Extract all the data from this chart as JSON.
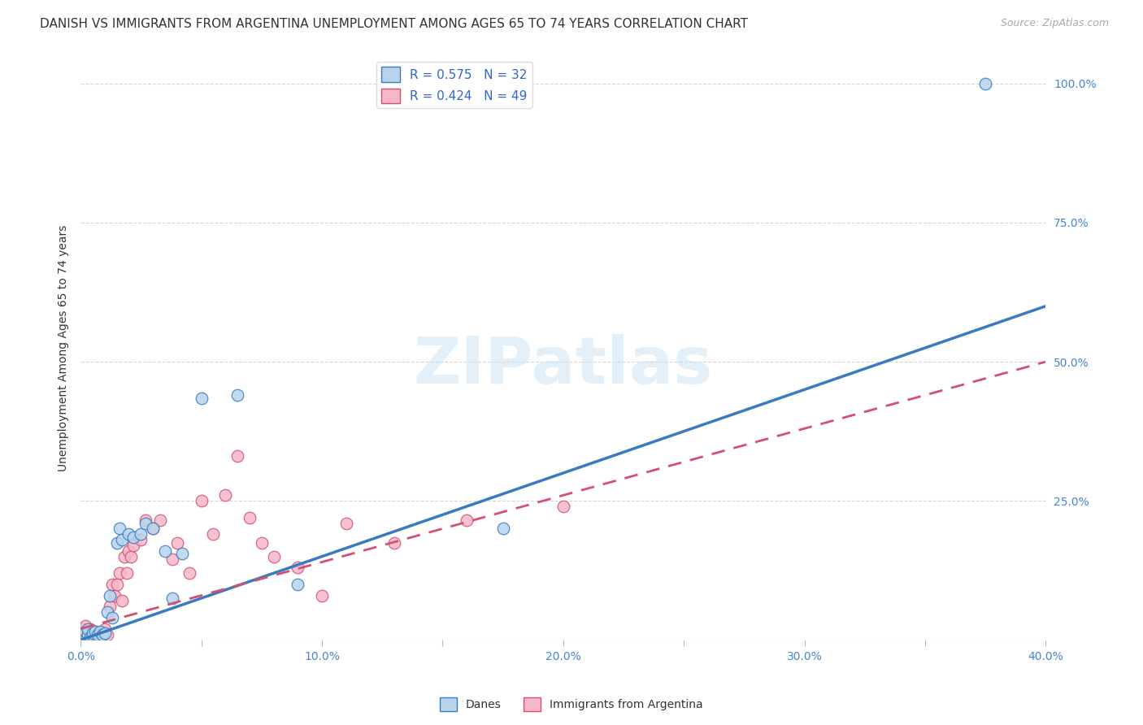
{
  "title": "DANISH VS IMMIGRANTS FROM ARGENTINA UNEMPLOYMENT AMONG AGES 65 TO 74 YEARS CORRELATION CHART",
  "source": "Source: ZipAtlas.com",
  "ylabel": "Unemployment Among Ages 65 to 74 years",
  "xlim": [
    0.0,
    0.4
  ],
  "ylim": [
    0.0,
    1.05
  ],
  "xticks": [
    0.0,
    0.05,
    0.1,
    0.15,
    0.2,
    0.25,
    0.3,
    0.35,
    0.4
  ],
  "yticks": [
    0.0,
    0.25,
    0.5,
    0.75,
    1.0
  ],
  "ytick_labels": [
    "",
    "25.0%",
    "50.0%",
    "75.0%",
    "100.0%"
  ],
  "xtick_labels": [
    "0.0%",
    "",
    "10.0%",
    "",
    "20.0%",
    "",
    "30.0%",
    "",
    "40.0%"
  ],
  "danes_R": 0.575,
  "danes_N": 32,
  "argentina_R": 0.424,
  "argentina_N": 49,
  "danes_color": "#b8d4ed",
  "danes_line_color": "#3a7bbf",
  "argentina_color": "#f5b8c8",
  "argentina_line_color": "#d45070",
  "danes_trend_x": [
    0.0,
    0.4
  ],
  "danes_trend_y": [
    0.0,
    0.6
  ],
  "argentina_trend_x": [
    0.0,
    0.4
  ],
  "argentina_trend_y": [
    0.02,
    0.5
  ],
  "danes_x": [
    0.001,
    0.002,
    0.002,
    0.003,
    0.003,
    0.004,
    0.005,
    0.005,
    0.006,
    0.007,
    0.008,
    0.009,
    0.01,
    0.011,
    0.012,
    0.013,
    0.015,
    0.016,
    0.017,
    0.02,
    0.022,
    0.025,
    0.027,
    0.03,
    0.035,
    0.038,
    0.042,
    0.05,
    0.065,
    0.09,
    0.175,
    0.375
  ],
  "danes_y": [
    0.005,
    0.01,
    0.015,
    0.01,
    0.02,
    0.005,
    0.008,
    0.012,
    0.015,
    0.01,
    0.015,
    0.01,
    0.012,
    0.05,
    0.08,
    0.04,
    0.175,
    0.2,
    0.18,
    0.19,
    0.185,
    0.19,
    0.21,
    0.2,
    0.16,
    0.075,
    0.155,
    0.435,
    0.44,
    0.1,
    0.2,
    1.0
  ],
  "argentina_x": [
    0.001,
    0.001,
    0.002,
    0.002,
    0.003,
    0.003,
    0.004,
    0.004,
    0.005,
    0.005,
    0.006,
    0.006,
    0.007,
    0.007,
    0.008,
    0.009,
    0.01,
    0.011,
    0.012,
    0.013,
    0.014,
    0.015,
    0.016,
    0.017,
    0.018,
    0.019,
    0.02,
    0.021,
    0.022,
    0.025,
    0.027,
    0.03,
    0.033,
    0.038,
    0.04,
    0.045,
    0.05,
    0.055,
    0.06,
    0.065,
    0.07,
    0.075,
    0.08,
    0.09,
    0.1,
    0.11,
    0.13,
    0.16,
    0.2
  ],
  "argentina_y": [
    0.02,
    0.01,
    0.015,
    0.025,
    0.01,
    0.015,
    0.02,
    0.01,
    0.005,
    0.012,
    0.01,
    0.015,
    0.012,
    0.008,
    0.012,
    0.01,
    0.02,
    0.01,
    0.06,
    0.1,
    0.08,
    0.1,
    0.12,
    0.07,
    0.15,
    0.12,
    0.16,
    0.15,
    0.17,
    0.18,
    0.215,
    0.2,
    0.215,
    0.145,
    0.175,
    0.12,
    0.25,
    0.19,
    0.26,
    0.33,
    0.22,
    0.175,
    0.15,
    0.13,
    0.08,
    0.21,
    0.175,
    0.215,
    0.24
  ],
  "watermark": "ZIPatlas",
  "background_color": "#ffffff",
  "grid_color": "#cccccc",
  "title_fontsize": 11,
  "axis_label_fontsize": 10,
  "tick_fontsize": 10,
  "legend_fontsize": 11
}
